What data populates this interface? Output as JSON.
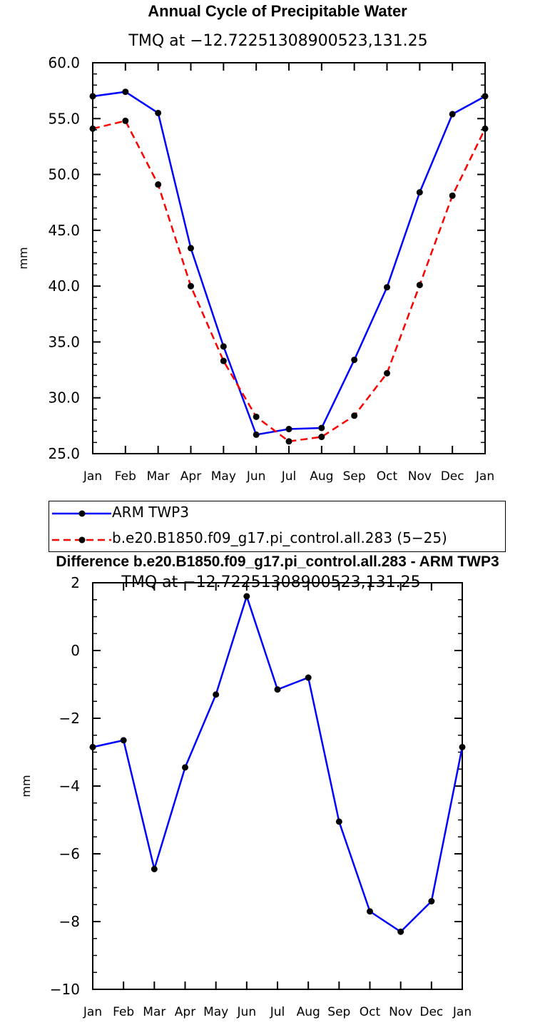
{
  "colors": {
    "obs_line": "#0000ff",
    "model_line": "#ff0000",
    "diff_line": "#0000ff",
    "marker": "#000000"
  },
  "chart_data": [
    {
      "type": "line",
      "title": "Annual Cycle of Precipitable Water",
      "subtitle": "TMQ at −12.72251308900523,131.25",
      "xlabel": "",
      "ylabel": "mm",
      "categories": [
        "Jan",
        "Feb",
        "Mar",
        "Apr",
        "May",
        "Jun",
        "Jul",
        "Aug",
        "Sep",
        "Oct",
        "Nov",
        "Dec",
        "Jan"
      ],
      "ylim": [
        25.0,
        60.0
      ],
      "yticks": [
        "25.0",
        "30.0",
        "35.0",
        "40.0",
        "45.0",
        "50.0",
        "55.0",
        "60.0"
      ],
      "series": [
        {
          "name": "ARM TWP3",
          "style": "solid",
          "color": "#0000ff",
          "values": [
            57.0,
            57.4,
            55.5,
            43.4,
            34.6,
            26.7,
            27.2,
            27.3,
            33.4,
            39.9,
            48.4,
            55.4,
            57.0
          ]
        },
        {
          "name": "b.e20.B1850.f09_g17.pi_control.all.283 (5−25)",
          "style": "dashed",
          "color": "#ff0000",
          "values": [
            54.1,
            54.8,
            49.1,
            40.0,
            33.3,
            28.3,
            26.1,
            26.5,
            28.4,
            32.2,
            40.1,
            48.1,
            54.1
          ]
        }
      ],
      "legend_position": "below"
    },
    {
      "type": "line",
      "title": "Difference b.e20.B1850.f09_g17.pi_control.all.283 - ARM TWP3",
      "subtitle": "TMQ at −12.72251308900523,131.25",
      "xlabel": "",
      "ylabel": "mm",
      "categories": [
        "Jan",
        "Feb",
        "Mar",
        "Apr",
        "May",
        "Jun",
        "Jul",
        "Aug",
        "Sep",
        "Oct",
        "Nov",
        "Dec",
        "Jan"
      ],
      "ylim": [
        -10,
        2
      ],
      "yticks": [
        "−10",
        "−8",
        "−6",
        "−4",
        "−2",
        "0",
        "2"
      ],
      "series": [
        {
          "style": "solid",
          "color": "#0000ff",
          "values": [
            -2.85,
            -2.65,
            -6.45,
            -3.45,
            -1.3,
            1.6,
            -1.15,
            -0.8,
            -5.05,
            -7.7,
            -8.3,
            -7.4,
            -2.85
          ]
        }
      ]
    }
  ]
}
